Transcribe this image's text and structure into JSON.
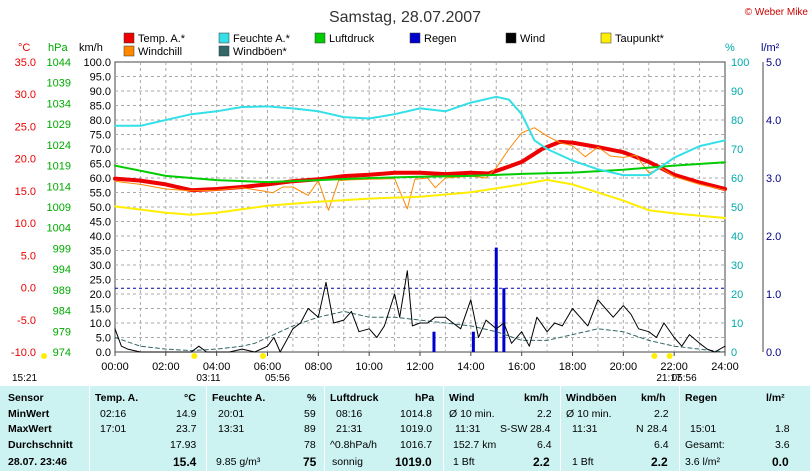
{
  "credit": "© Weber Mike",
  "chart_data": {
    "type": "line",
    "title": "Samstag, 28.07.2007",
    "x_ticks": [
      "00:00",
      "02:00",
      "04:00",
      "06:00",
      "08:00",
      "10:00",
      "12:00",
      "14:00",
      "16:00",
      "18:00",
      "20:00",
      "22:00",
      "24:00"
    ],
    "axes": {
      "temp": {
        "unit": "°C",
        "ticks": [
          "35.0",
          "30.0",
          "25.0",
          "20.0",
          "15.0",
          "10.0",
          "5.0",
          "0.0",
          "-5.0",
          "-10.0"
        ],
        "range": [
          -10,
          35
        ],
        "color": "#ee0000"
      },
      "pressure": {
        "unit": "hPa",
        "ticks": [
          "1044",
          "1039",
          "1034",
          "1029",
          "1024",
          "1019",
          "1014",
          "1009",
          "1004",
          "999",
          "994",
          "989",
          "984",
          "979",
          "974"
        ],
        "range": [
          974,
          1044
        ],
        "color": "#00aa00"
      },
      "wind": {
        "unit": "km/h",
        "ticks": [
          "100.0",
          "95.0",
          "90.0",
          "85.0",
          "80.0",
          "75.0",
          "70.0",
          "65.0",
          "60.0",
          "55.0",
          "50.0",
          "45.0",
          "40.0",
          "35.0",
          "30.0",
          "25.0",
          "20.0",
          "15.0",
          "10.0",
          "5.0",
          "0.0"
        ],
        "range": [
          0,
          100
        ],
        "color": "#000000"
      },
      "humidity": {
        "unit": "%",
        "ticks": [
          "100",
          "90",
          "80",
          "70",
          "60",
          "50",
          "40",
          "30",
          "20",
          "10",
          "0"
        ],
        "range": [
          0,
          100
        ],
        "color": "#00aaaa"
      },
      "rain": {
        "unit": "l/m²",
        "ticks": [
          "5.0",
          "4.0",
          "3.0",
          "2.0",
          "1.0",
          "0.0"
        ],
        "range": [
          0,
          5
        ],
        "color": "#000088"
      }
    },
    "legend": [
      {
        "name": "Temp. A.*",
        "color": "#ee0000"
      },
      {
        "name": "Feuchte A.*",
        "color": "#33e0e8"
      },
      {
        "name": "Luftdruck",
        "color": "#00cc00"
      },
      {
        "name": "Regen",
        "color": "#0000cc"
      },
      {
        "name": "Wind",
        "color": "#000000"
      },
      {
        "name": "Taupunkt*",
        "color": "#ffee00"
      },
      {
        "name": "Windchill",
        "color": "#ff8800"
      },
      {
        "name": "Windböen*",
        "color": "#336666"
      }
    ],
    "series": [
      {
        "name": "Temp. A.*",
        "color": "#ee0000",
        "axis": "temp",
        "width": 4,
        "points": [
          [
            0,
            16.9
          ],
          [
            1,
            16.6
          ],
          [
            2,
            16.0
          ],
          [
            3,
            15.1
          ],
          [
            4,
            15.3
          ],
          [
            5,
            15.6
          ],
          [
            6,
            16.0
          ],
          [
            7,
            16.5
          ],
          [
            8,
            16.8
          ],
          [
            9,
            17.3
          ],
          [
            10,
            17.5
          ],
          [
            11,
            17.8
          ],
          [
            12,
            17.8
          ],
          [
            13,
            17.6
          ],
          [
            14,
            17.8
          ],
          [
            14.7,
            17.7
          ],
          [
            15.3,
            18.5
          ],
          [
            16,
            19.5
          ],
          [
            16.8,
            21.5
          ],
          [
            17.5,
            22.6
          ],
          [
            18,
            22.5
          ],
          [
            19,
            21.8
          ],
          [
            20,
            21.0
          ],
          [
            21,
            19.5
          ],
          [
            22,
            17.5
          ],
          [
            23,
            16.3
          ],
          [
            24,
            15.3
          ]
        ]
      },
      {
        "name": "Windchill",
        "color": "#ff8800",
        "axis": "temp",
        "width": 1,
        "points": [
          [
            0,
            16.5
          ],
          [
            1,
            16.0
          ],
          [
            2,
            15.3
          ],
          [
            3,
            15.0
          ],
          [
            4,
            15.1
          ],
          [
            5,
            15.5
          ],
          [
            5.8,
            15.0
          ],
          [
            6.2,
            14.7
          ],
          [
            6.6,
            15.6
          ],
          [
            7,
            15.6
          ],
          [
            7.6,
            14.3
          ],
          [
            8,
            16.6
          ],
          [
            8.4,
            12.0
          ],
          [
            8.8,
            16.6
          ],
          [
            9.2,
            16.7
          ],
          [
            10,
            16.8
          ],
          [
            11,
            16.9
          ],
          [
            11.5,
            12.2
          ],
          [
            11.8,
            16.8
          ],
          [
            12.3,
            17.0
          ],
          [
            12.6,
            15.5
          ],
          [
            13,
            17.0
          ],
          [
            14,
            17.3
          ],
          [
            14.6,
            17.0
          ],
          [
            15,
            18.6
          ],
          [
            15.5,
            21.5
          ],
          [
            16,
            24.0
          ],
          [
            16.5,
            24.8
          ],
          [
            17,
            23.5
          ],
          [
            17.5,
            22.5
          ],
          [
            18,
            22.0
          ],
          [
            18.5,
            20.3
          ],
          [
            19,
            21.8
          ],
          [
            19.5,
            20.4
          ],
          [
            20,
            20.2
          ],
          [
            20.5,
            20.5
          ],
          [
            21,
            17.8
          ],
          [
            21.5,
            18.5
          ],
          [
            22,
            17.2
          ],
          [
            23,
            16.0
          ],
          [
            24,
            15.1
          ]
        ]
      },
      {
        "name": "Luftdruck",
        "color": "#00cc00",
        "axis": "pressure",
        "width": 2,
        "points": [
          [
            0,
            1019.0
          ],
          [
            2,
            1016.5
          ],
          [
            4,
            1015.5
          ],
          [
            6,
            1015.0
          ],
          [
            8,
            1015.5
          ],
          [
            10,
            1016.0
          ],
          [
            12,
            1016.3
          ],
          [
            14,
            1016.5
          ],
          [
            16,
            1017.0
          ],
          [
            18,
            1017.3
          ],
          [
            20,
            1018.0
          ],
          [
            22,
            1019.0
          ],
          [
            24,
            1019.8
          ]
        ]
      },
      {
        "name": "Feuchte A.*",
        "color": "#33e0e8",
        "axis": "humidity",
        "width": 2,
        "points": [
          [
            0,
            78
          ],
          [
            1,
            78
          ],
          [
            2,
            80
          ],
          [
            3,
            82
          ],
          [
            4,
            83
          ],
          [
            5,
            84.5
          ],
          [
            6,
            84.7
          ],
          [
            7,
            84
          ],
          [
            8,
            83
          ],
          [
            9,
            81
          ],
          [
            10,
            80.5
          ],
          [
            11,
            82
          ],
          [
            12,
            84
          ],
          [
            13,
            83
          ],
          [
            14,
            86
          ],
          [
            15,
            88
          ],
          [
            15.5,
            87
          ],
          [
            16,
            82
          ],
          [
            16.5,
            73
          ],
          [
            17,
            70
          ],
          [
            18,
            66
          ],
          [
            19,
            63
          ],
          [
            20,
            61
          ],
          [
            21,
            61
          ],
          [
            22,
            67
          ],
          [
            23,
            71
          ],
          [
            24,
            73
          ]
        ]
      },
      {
        "name": "Taupunkt*",
        "color": "#ffee00",
        "axis": "temp",
        "width": 2,
        "points": [
          [
            0,
            12.6
          ],
          [
            2,
            11.6
          ],
          [
            3,
            11.3
          ],
          [
            4,
            11.6
          ],
          [
            6,
            12.7
          ],
          [
            8,
            13.3
          ],
          [
            10,
            13.8
          ],
          [
            12,
            14.1
          ],
          [
            14,
            14.8
          ],
          [
            16,
            16.0
          ],
          [
            17,
            16.7
          ],
          [
            18,
            16.0
          ],
          [
            20,
            13.5
          ],
          [
            21,
            12.0
          ],
          [
            22,
            11.5
          ],
          [
            24,
            10.8
          ]
        ]
      },
      {
        "name": "Windböen*",
        "color": "#336666",
        "axis": "wind",
        "width": 1,
        "dash": "4,3",
        "points": [
          [
            0,
            5
          ],
          [
            1,
            2
          ],
          [
            2,
            1
          ],
          [
            3,
            0.5
          ],
          [
            4,
            1
          ],
          [
            5,
            2
          ],
          [
            5.5,
            3
          ],
          [
            6,
            5
          ],
          [
            7,
            9
          ],
          [
            8,
            12
          ],
          [
            9,
            14
          ],
          [
            10,
            12
          ],
          [
            11,
            12
          ],
          [
            12,
            11
          ],
          [
            13,
            10
          ],
          [
            14,
            9
          ],
          [
            15,
            7
          ],
          [
            16,
            4
          ],
          [
            17,
            4
          ],
          [
            18,
            6
          ],
          [
            19,
            8
          ],
          [
            20,
            7
          ],
          [
            21,
            4
          ],
          [
            22,
            2
          ],
          [
            23,
            1
          ],
          [
            24,
            0
          ]
        ]
      },
      {
        "name": "Wind",
        "color": "#000000",
        "axis": "wind",
        "width": 1,
        "points": [
          [
            0,
            8
          ],
          [
            0.25,
            2
          ],
          [
            0.5,
            1
          ],
          [
            1,
            0
          ],
          [
            2,
            0
          ],
          [
            3,
            0
          ],
          [
            3.3,
            2
          ],
          [
            3.6,
            0
          ],
          [
            4,
            0
          ],
          [
            4.5,
            0
          ],
          [
            5,
            1
          ],
          [
            5.5,
            0
          ],
          [
            6,
            2
          ],
          [
            6.25,
            5
          ],
          [
            6.5,
            0
          ],
          [
            7,
            8
          ],
          [
            7.3,
            10
          ],
          [
            7.6,
            15
          ],
          [
            8,
            12
          ],
          [
            8.3,
            24
          ],
          [
            8.6,
            10
          ],
          [
            9,
            11
          ],
          [
            9.3,
            14
          ],
          [
            9.6,
            7
          ],
          [
            10,
            8
          ],
          [
            10.3,
            5
          ],
          [
            10.6,
            9
          ],
          [
            11,
            20
          ],
          [
            11.2,
            12
          ],
          [
            11.5,
            28
          ],
          [
            11.7,
            9
          ],
          [
            12,
            10
          ],
          [
            12.3,
            10
          ],
          [
            12.6,
            12
          ],
          [
            13,
            12
          ],
          [
            13.3,
            10
          ],
          [
            13.6,
            8
          ],
          [
            14,
            18
          ],
          [
            14.3,
            5
          ],
          [
            14.6,
            11
          ],
          [
            15,
            8
          ],
          [
            15.3,
            10
          ],
          [
            15.6,
            3
          ],
          [
            16,
            7
          ],
          [
            16.3,
            2
          ],
          [
            16.6,
            12
          ],
          [
            17,
            7
          ],
          [
            17.3,
            10
          ],
          [
            17.6,
            9
          ],
          [
            18,
            15
          ],
          [
            18.3,
            12
          ],
          [
            18.6,
            9
          ],
          [
            19,
            18
          ],
          [
            19.3,
            15
          ],
          [
            19.6,
            12
          ],
          [
            20,
            16
          ],
          [
            20.3,
            13
          ],
          [
            20.6,
            8
          ],
          [
            21,
            7
          ],
          [
            21.3,
            5
          ],
          [
            21.6,
            10
          ],
          [
            22,
            5
          ],
          [
            22.3,
            2
          ],
          [
            22.6,
            6
          ],
          [
            23,
            3
          ],
          [
            23.3,
            1
          ],
          [
            23.6,
            0
          ],
          [
            24,
            2
          ]
        ]
      }
    ],
    "rain_bars": [
      {
        "time": 12.55,
        "value": 0.35
      },
      {
        "time": 14.1,
        "value": 0.35
      },
      {
        "time": 15.0,
        "value": 1.8
      },
      {
        "time": 15.3,
        "value": 1.1
      }
    ],
    "rain_dotted_level": 1.1,
    "sun_times": [
      {
        "label": "15:21",
        "time": 0.0,
        "row": 1
      },
      {
        "label": "03:11",
        "time": 3.2,
        "row": 1
      },
      {
        "label": "05:56",
        "time": 5.9,
        "row": 1
      },
      {
        "label": "21:17",
        "time": 21.3,
        "row": 0
      },
      {
        "label": "05:56",
        "time": 21.9,
        "row": 1
      }
    ]
  },
  "table": {
    "sensor": {
      "title": "Sensor",
      "min": "MinWert",
      "max": "MaxWert",
      "avg": "Durchschnitt",
      "now": "28.07. 23:46"
    },
    "temp": {
      "title": "Temp. A.",
      "unit": "°C",
      "min_time": "02:16",
      "min": "14.9",
      "max_time": "17:01",
      "max": "23.7",
      "avg": "17.93",
      "now": "15.4"
    },
    "humidity": {
      "title": "Feuchte A.",
      "unit": "%",
      "min_time": "20:01",
      "min": "59",
      "max_time": "13:31",
      "max": "89",
      "avg": "78",
      "now_extra": "9.85 g/m³",
      "now": "75"
    },
    "pressure": {
      "title": "Luftdruck",
      "unit": "hPa",
      "min_time": "08:16",
      "min": "1014.8",
      "max_time": "21:31",
      "max": "1019.0",
      "avg_label": "^0.8hPa/h",
      "avg": "1016.7",
      "now_label": "sonnig",
      "now": "1019.0"
    },
    "wind": {
      "title": "Wind",
      "unit": "km/h",
      "min_label": "Ø 10 min.",
      "min": "2.2",
      "max_time": "11:31",
      "max_dir": "S-SW",
      "max": "28.4",
      "avg_label": "152.7 km",
      "avg": "6.4",
      "now_label": "1 Bft",
      "now": "2.2"
    },
    "gust": {
      "title": "Windböen",
      "unit": "km/h",
      "min_label": "Ø 10 min.",
      "min": "2.2",
      "max_time": "11:31",
      "max_dir": "N",
      "max": "28.4",
      "avg": "6.4",
      "now_label": "1 Bft",
      "now": "2.2"
    },
    "rain": {
      "title": "Regen",
      "unit": "l/m²",
      "max_time": "15:01",
      "max": "1.8",
      "avg_label": "Gesamt:",
      "avg": "3.6",
      "now_label": "3.6 l/m²",
      "now": "0.0"
    }
  }
}
